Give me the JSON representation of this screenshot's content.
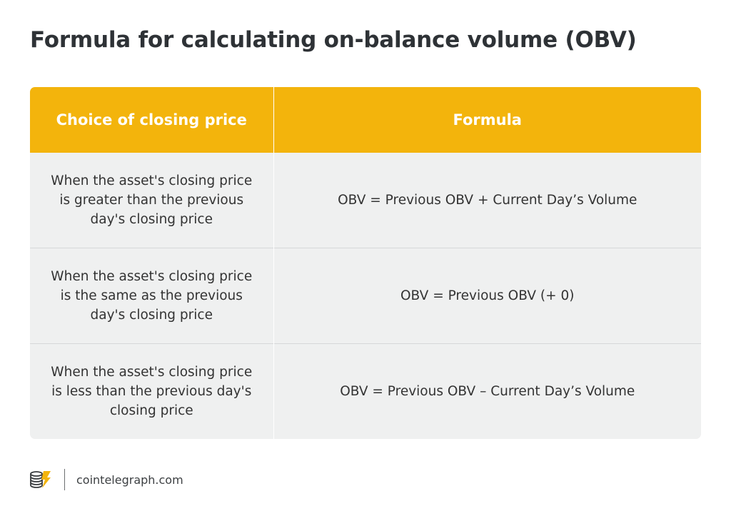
{
  "title": "Formula for calculating on-balance volume (OBV)",
  "table": {
    "headers": [
      "Choice of closing price",
      "Formula"
    ],
    "rows": [
      {
        "condition": "When the asset's closing price is greater than the previous day's closing price",
        "formula": "OBV = Previous OBV + Current Day’s Volume"
      },
      {
        "condition": "When the asset's closing price is the same as the previous day's closing price",
        "formula": "OBV = Previous OBV (+ 0)"
      },
      {
        "condition": "When the asset's closing price is less than the previous day's closing price",
        "formula": "OBV = Previous OBV – Current Day’s Volume"
      }
    ]
  },
  "footer": {
    "logo_icon": "cointelegraph-logo-icon",
    "site": "cointelegraph.com"
  },
  "colors": {
    "header_bg": "#f3b40c",
    "row_bg": "#eff0f0",
    "title_text": "#2e3236"
  }
}
